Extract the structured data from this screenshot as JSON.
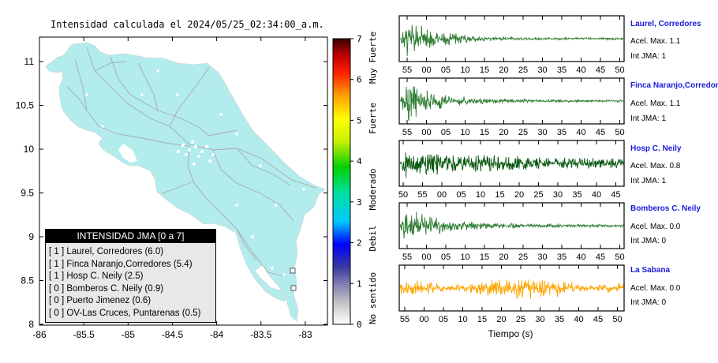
{
  "map": {
    "title": "Intensidad calculada el 2024/05/25_02:34:00_a.m.",
    "x_ticks": [
      "-86",
      "-85.5",
      "-85",
      "-84.5",
      "-84",
      "-83.5",
      "-83"
    ],
    "y_ticks": [
      "11",
      "10.5",
      "10",
      "9.5",
      "9",
      "8.5",
      "8"
    ],
    "colorbar_ticks": [
      "7",
      "6",
      "5",
      "4",
      "3",
      "2",
      "1",
      "0"
    ],
    "colorbar_labels": [
      "Muy Fuerte",
      "Fuerte",
      "Moderado",
      "Debil",
      "No sentido"
    ],
    "legend": {
      "header": "INTENSIDAD JMA [0 a 7]",
      "rows": [
        "[ 1 ]  Laurel, Corredores (6.0)",
        "[ 1 ]  Finca Naranjo,Corredores (5.4)",
        "[ 1 ]  Hosp C. Neily (2.5)",
        "[ 0 ]  Bomberos C. Neily (0.9)",
        "[ 0 ]  Puerto Jimenez (0.6)",
        "[ 0 ]  OV-Las Cruces, Puntarenas (0.5)"
      ]
    }
  },
  "colors": {
    "land": "#b2eced",
    "wave_green": "#2e7d32",
    "wave_dark": "#0b5a12",
    "wave_orange": "#ffa500",
    "station_name": "#1a1adb"
  },
  "chart_data": [
    {
      "type": "line",
      "title": "Laurel, Corredores",
      "accel_label": "Acel. Max. 1.1",
      "jma_label": "Int JMA: 1",
      "x_ticks": [
        "55",
        "00",
        "05",
        "10",
        "15",
        "20",
        "25",
        "30",
        "35",
        "40",
        "45",
        "50"
      ]
    },
    {
      "type": "line",
      "title": "Finca Naranjo,Corredores",
      "accel_label": "Acel. Max. 1.1",
      "jma_label": "Int JMA: 1",
      "x_ticks": [
        "55",
        "00",
        "05",
        "10",
        "15",
        "20",
        "25",
        "30",
        "35",
        "40",
        "45",
        "50"
      ]
    },
    {
      "type": "line",
      "title": "Hosp C. Neily",
      "accel_label": "Acel. Max. 0.8",
      "jma_label": "Int JMA: 1",
      "x_ticks": [
        "50",
        "55",
        "00",
        "05",
        "10",
        "15",
        "20",
        "25",
        "30",
        "35",
        "40",
        "45"
      ]
    },
    {
      "type": "line",
      "title": "Bomberos C. Neily",
      "accel_label": "Acel. Max. 0.0",
      "jma_label": "Int JMA: 0",
      "x_ticks": [
        "55",
        "00",
        "05",
        "10",
        "15",
        "20",
        "25",
        "30",
        "35",
        "40",
        "45",
        "50"
      ]
    },
    {
      "type": "line",
      "title": "La Sabana",
      "accel_label": "Acel. Max. 0.0",
      "jma_label": "Int JMA: 0",
      "x_ticks": [
        "55",
        "00",
        "05",
        "10",
        "15",
        "20",
        "25",
        "30",
        "35",
        "40",
        "45",
        "50"
      ],
      "xlabel": "Tiempo (s)"
    }
  ]
}
